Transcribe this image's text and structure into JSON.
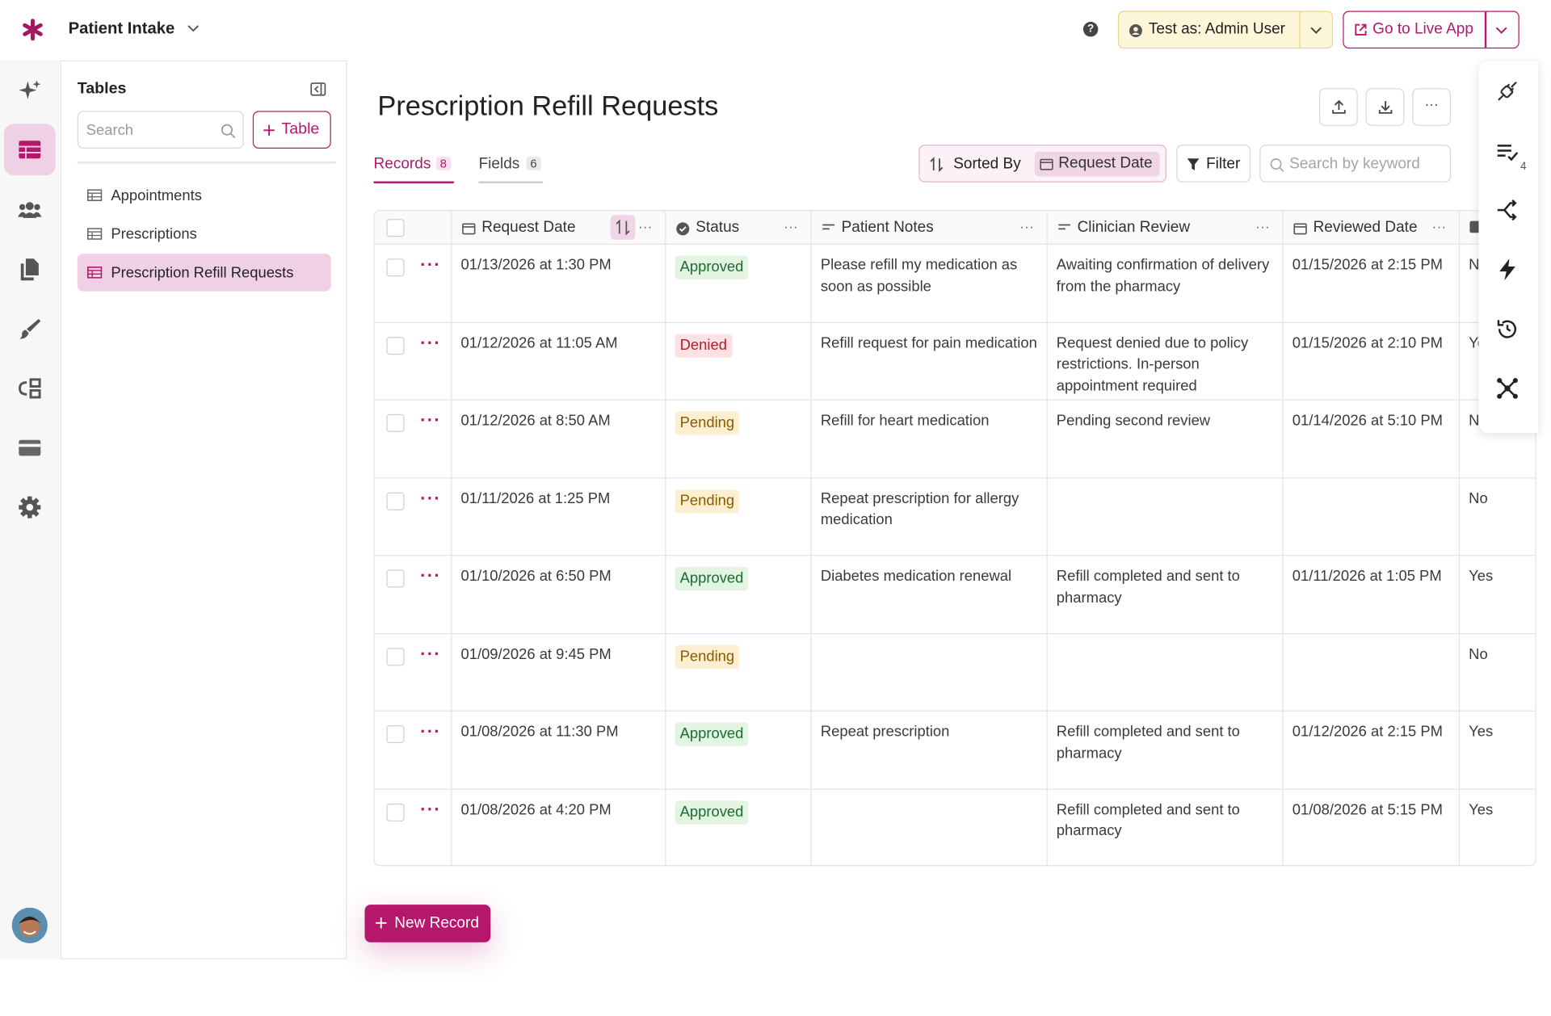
{
  "app": {
    "name": "Patient Intake"
  },
  "header": {
    "help": "?",
    "test_as": "Test as: Admin User",
    "live_app": "Go to Live App"
  },
  "sidebar": {
    "title": "Tables",
    "search_placeholder": "Search",
    "add_table": "Table",
    "tables": [
      "Appointments",
      "Prescriptions",
      "Prescription Refill Requests"
    ]
  },
  "page": {
    "title": "Prescription Refill Requests",
    "tabs": [
      {
        "label": "Records",
        "count": 8
      },
      {
        "label": "Fields",
        "count": 6
      }
    ],
    "sorted_by": "Sorted By",
    "sort_field": "Request Date",
    "filter": "Filter",
    "search_placeholder": "Search by keyword"
  },
  "table": {
    "columns": [
      "Request Date",
      "Status",
      "Patient Notes",
      "Clinician Review",
      "Reviewed Date"
    ],
    "rows": [
      {
        "request_date": "01/13/2026 at 1:30 PM",
        "status": "Approved",
        "status_color": "#1d6b33",
        "status_bg": "#e3f4e0",
        "patient_notes": "Please refill my medication as soon as possible",
        "clinician_review": "Awaiting confirmation of delivery from the pharmacy",
        "reviewed_date": "01/15/2026 at 2:15 PM",
        "last": "No"
      },
      {
        "request_date": "01/12/2026 at 11:05 AM",
        "status": "Denied",
        "status_color": "#c0162e",
        "status_bg": "#fde2e3",
        "patient_notes": "Refill request for pain medication",
        "clinician_review": "Request denied due to policy restrictions. In-person appointment required",
        "reviewed_date": "01/15/2026 at 2:10 PM",
        "last": "Yes"
      },
      {
        "request_date": "01/12/2026 at 8:50 AM",
        "status": "Pending",
        "status_color": "#8a5a00",
        "status_bg": "#fdf0d2",
        "patient_notes": "Refill for heart medication",
        "clinician_review": "Pending second review",
        "reviewed_date": "01/14/2026 at 5:10 PM",
        "last": "No"
      },
      {
        "request_date": "01/11/2026 at 1:25 PM",
        "status": "Pending",
        "status_color": "#8a5a00",
        "status_bg": "#fdf0d2",
        "patient_notes": "Repeat prescription for allergy medication",
        "clinician_review": null,
        "reviewed_date": null,
        "last": "No"
      },
      {
        "request_date": "01/10/2026 at 6:50 PM",
        "status": "Approved",
        "status_color": "#1d6b33",
        "status_bg": "#e3f4e0",
        "patient_notes": "Diabetes medication renewal",
        "clinician_review": "Refill completed and sent to pharmacy",
        "reviewed_date": "01/11/2026 at 1:05 PM",
        "last": "Yes"
      },
      {
        "request_date": "01/09/2026 at 9:45 PM",
        "status": "Pending",
        "status_color": "#8a5a00",
        "status_bg": "#fdf0d2",
        "patient_notes": null,
        "clinician_review": null,
        "reviewed_date": null,
        "last": "No"
      },
      {
        "request_date": "01/08/2026 at 11:30 PM",
        "status": "Approved",
        "status_color": "#1d6b33",
        "status_bg": "#e3f4e0",
        "patient_notes": "Repeat prescription",
        "clinician_review": "Refill completed and sent to pharmacy",
        "reviewed_date": "01/12/2026 at 2:15 PM",
        "last": "Yes"
      },
      {
        "request_date": "01/08/2026 at 4:20 PM",
        "status": "Approved",
        "status_color": "#1d6b33",
        "status_bg": "#e3f4e0",
        "patient_notes": null,
        "clinician_review": "Refill completed and sent to pharmacy",
        "reviewed_date": "01/08/2026 at 5:15 PM",
        "last": "Yes"
      }
    ]
  },
  "new_record": "New Record",
  "right_panel": {
    "badge": 4
  }
}
